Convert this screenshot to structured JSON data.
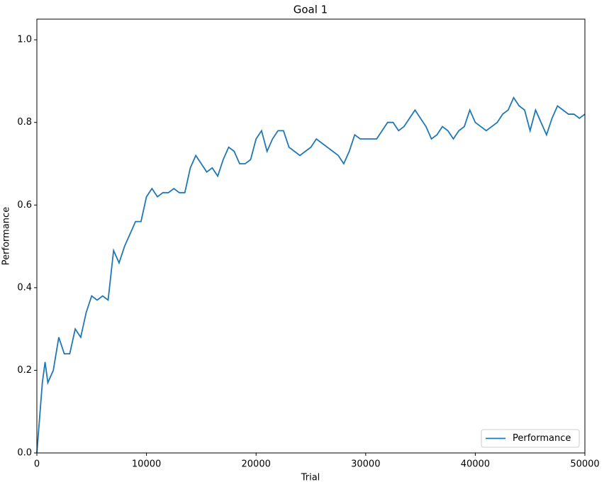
{
  "chart_data": {
    "type": "line",
    "title": "Goal 1",
    "x_label": "Trial",
    "y_label": "Performance",
    "x": [
      0,
      500,
      750,
      1000,
      1500,
      2000,
      2500,
      3000,
      3500,
      4000,
      4500,
      5000,
      5500,
      6000,
      6500,
      7000,
      7500,
      8000,
      8500,
      9000,
      9500,
      10000,
      10500,
      11000,
      11500,
      12000,
      12500,
      13000,
      13500,
      14000,
      14500,
      15000,
      15500,
      16000,
      16500,
      17000,
      17500,
      18000,
      18500,
      19000,
      19500,
      20000,
      20500,
      21000,
      21500,
      22000,
      22500,
      23000,
      23500,
      24000,
      24500,
      25000,
      25500,
      26000,
      26500,
      27000,
      27500,
      28000,
      28500,
      29000,
      29500,
      30000,
      30500,
      31000,
      31500,
      32000,
      32500,
      33000,
      33500,
      34000,
      34500,
      35000,
      35500,
      36000,
      36500,
      37000,
      37500,
      38000,
      38500,
      39000,
      39500,
      40000,
      40500,
      41000,
      41500,
      42000,
      42500,
      43000,
      43500,
      44000,
      44500,
      45000,
      45500,
      46000,
      46500,
      47000,
      47500,
      48000,
      48500,
      49000,
      49500,
      50000
    ],
    "series": [
      {
        "name": "Performance",
        "color": "#1f77b4",
        "values": [
          0.0,
          0.17,
          0.22,
          0.17,
          0.2,
          0.28,
          0.24,
          0.24,
          0.3,
          0.28,
          0.34,
          0.38,
          0.37,
          0.38,
          0.37,
          0.49,
          0.46,
          0.5,
          0.53,
          0.56,
          0.56,
          0.62,
          0.64,
          0.62,
          0.63,
          0.63,
          0.64,
          0.63,
          0.63,
          0.69,
          0.72,
          0.7,
          0.68,
          0.69,
          0.67,
          0.71,
          0.74,
          0.73,
          0.7,
          0.7,
          0.71,
          0.76,
          0.78,
          0.73,
          0.76,
          0.78,
          0.78,
          0.74,
          0.73,
          0.72,
          0.73,
          0.74,
          0.76,
          0.75,
          0.74,
          0.73,
          0.72,
          0.7,
          0.73,
          0.77,
          0.76,
          0.76,
          0.76,
          0.76,
          0.78,
          0.8,
          0.8,
          0.78,
          0.79,
          0.81,
          0.83,
          0.81,
          0.79,
          0.76,
          0.77,
          0.79,
          0.78,
          0.76,
          0.78,
          0.79,
          0.83,
          0.8,
          0.79,
          0.78,
          0.79,
          0.8,
          0.82,
          0.83,
          0.86,
          0.84,
          0.83,
          0.78,
          0.83,
          0.8,
          0.77,
          0.81,
          0.84,
          0.83,
          0.82,
          0.82,
          0.81,
          0.82
        ]
      }
    ],
    "xlim": [
      0,
      50000
    ],
    "xticks": [
      0,
      10000,
      20000,
      30000,
      40000,
      50000
    ],
    "ylim": [
      0,
      1.05
    ],
    "yticks": [
      {
        "value": 0,
        "label": "0.0"
      },
      0.2,
      0.4,
      0.6,
      0.8,
      {
        "value": 1,
        "label": "1.0"
      }
    ],
    "legend": "lower right"
  }
}
